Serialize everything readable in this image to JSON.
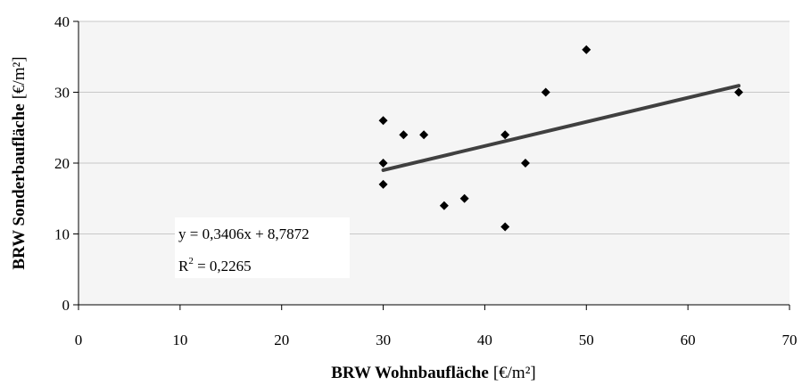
{
  "chart_data": {
    "type": "scatter",
    "title": "",
    "xlabel_bold": "BRW Wohnbaufläche",
    "xlabel_unit": "[€/m²]",
    "ylabel_bold": "BRW Sonderbaufläche",
    "ylabel_unit": "[€/m²]",
    "xlim": [
      0,
      70
    ],
    "ylim": [
      0,
      40
    ],
    "xticks": [
      0,
      10,
      20,
      30,
      40,
      50,
      60,
      70
    ],
    "yticks": [
      0,
      10,
      20,
      30,
      40
    ],
    "grid": "horizontal",
    "legend": "none",
    "points": [
      {
        "x": 30,
        "y": 26
      },
      {
        "x": 30,
        "y": 20
      },
      {
        "x": 30,
        "y": 17
      },
      {
        "x": 32,
        "y": 24
      },
      {
        "x": 34,
        "y": 24
      },
      {
        "x": 36,
        "y": 14
      },
      {
        "x": 38,
        "y": 15
      },
      {
        "x": 42,
        "y": 24
      },
      {
        "x": 42,
        "y": 11
      },
      {
        "x": 44,
        "y": 20
      },
      {
        "x": 46,
        "y": 30
      },
      {
        "x": 50,
        "y": 36
      },
      {
        "x": 65,
        "y": 30
      }
    ],
    "trendline": {
      "slope": 0.3406,
      "intercept": 8.7872,
      "x_range": [
        30,
        65
      ],
      "equation_label": "y = 0,3406x + 8,7872",
      "r2_prefix": "R",
      "r2_sup": "2",
      "r2_value": " = 0,2265"
    },
    "colors": {
      "plot_background": "#f5f5f5",
      "marker": "#000000",
      "trendline": "#404040",
      "gridline": "#c8c8c8"
    }
  }
}
